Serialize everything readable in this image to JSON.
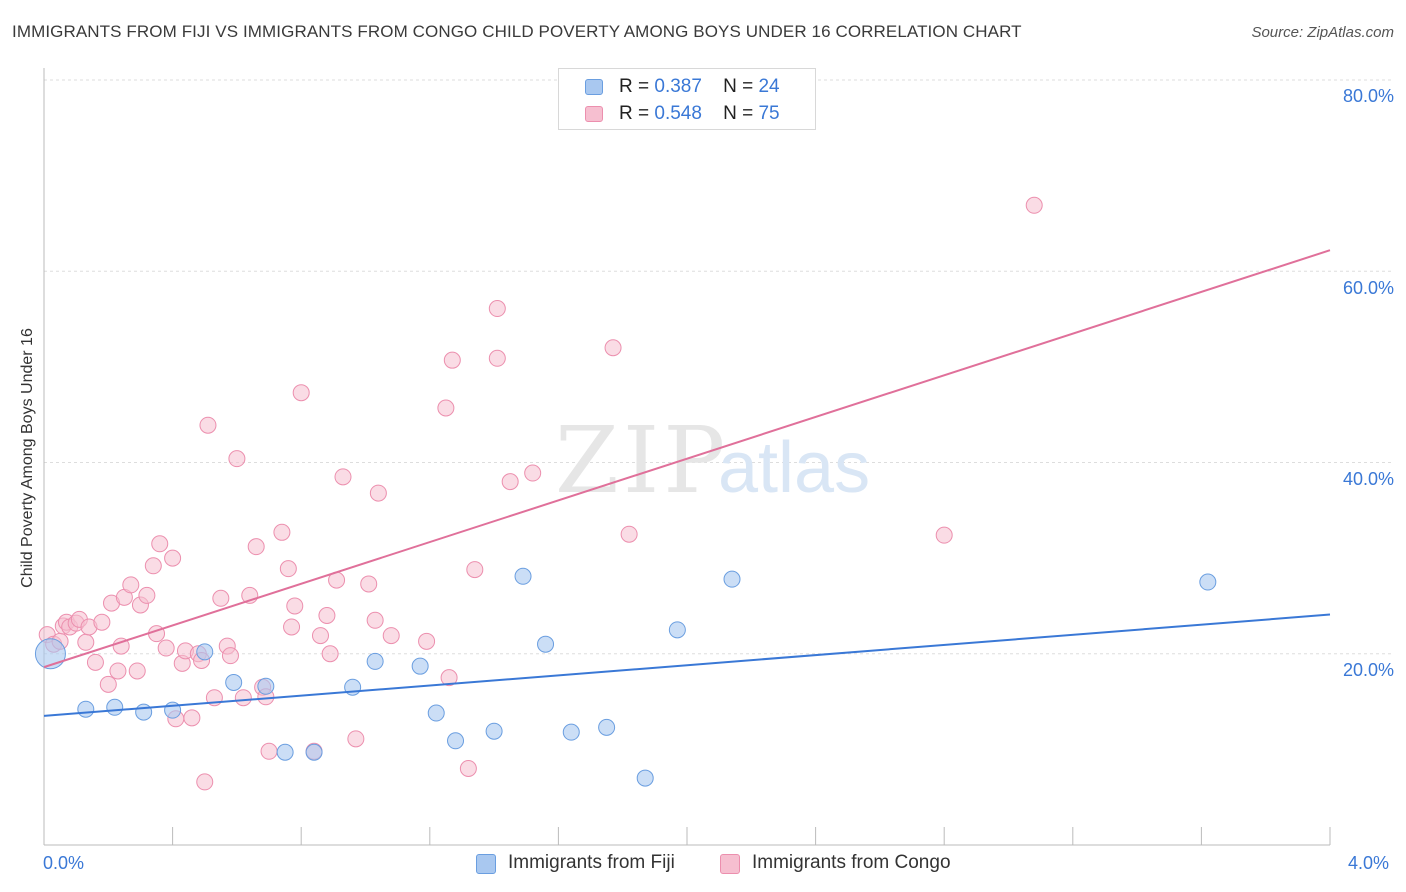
{
  "header": {
    "title": "IMMIGRANTS FROM FIJI VS IMMIGRANTS FROM CONGO CHILD POVERTY AMONG BOYS UNDER 16 CORRELATION CHART",
    "source": "Source: ZipAtlas.com"
  },
  "watermark": {
    "zip": "ZIP",
    "atlas": "atlas"
  },
  "legend_stats": {
    "r_label": "R =",
    "n_label": "N =",
    "fiji": {
      "r": "0.387",
      "n": "24"
    },
    "congo": {
      "r": "0.548",
      "n": "75"
    }
  },
  "colors": {
    "fiji_fill": "#a9c8f0",
    "fiji_stroke": "#6a9ee0",
    "fiji_line": "#3a78d6",
    "congo_fill": "#f6bfd0",
    "congo_stroke": "#ec8fae",
    "congo_line": "#e0709a",
    "axis_text": "#3a78d6",
    "grid": "#dddddd"
  },
  "chart_data": {
    "type": "scatter",
    "title": "IMMIGRANTS FROM FIJI VS IMMIGRANTS FROM CONGO CHILD POVERTY AMONG BOYS UNDER 16 CORRELATION CHART",
    "xlabel": "",
    "ylabel": "Child Poverty Among Boys Under 16",
    "xlim": [
      0,
      4.0
    ],
    "ylim": [
      0,
      80
    ],
    "x_tick_labels": [
      "0.0%",
      "4.0%"
    ],
    "y_ticks": [
      20,
      40,
      60,
      80
    ],
    "y_tick_labels": [
      "20.0%",
      "40.0%",
      "60.0%",
      "80.0%"
    ],
    "grid": true,
    "legend_position": "bottom",
    "series": [
      {
        "name": "Immigrants from Fiji",
        "trend": {
          "x": [
            0,
            4.0
          ],
          "y": [
            13.5,
            24.1
          ]
        },
        "points": [
          {
            "x": 0.02,
            "y": 20.0,
            "big": true
          },
          {
            "x": 0.13,
            "y": 14.2
          },
          {
            "x": 0.22,
            "y": 14.4
          },
          {
            "x": 0.31,
            "y": 13.9
          },
          {
            "x": 0.4,
            "y": 14.1
          },
          {
            "x": 0.5,
            "y": 20.2
          },
          {
            "x": 0.59,
            "y": 17.0
          },
          {
            "x": 0.69,
            "y": 16.6
          },
          {
            "x": 0.75,
            "y": 9.7
          },
          {
            "x": 0.84,
            "y": 9.7
          },
          {
            "x": 0.96,
            "y": 16.5
          },
          {
            "x": 1.03,
            "y": 19.2
          },
          {
            "x": 1.17,
            "y": 18.7
          },
          {
            "x": 1.22,
            "y": 13.8
          },
          {
            "x": 1.28,
            "y": 10.9
          },
          {
            "x": 1.4,
            "y": 11.9
          },
          {
            "x": 1.49,
            "y": 28.1
          },
          {
            "x": 1.56,
            "y": 21.0
          },
          {
            "x": 1.64,
            "y": 11.8
          },
          {
            "x": 1.75,
            "y": 12.3
          },
          {
            "x": 1.87,
            "y": 7.0
          },
          {
            "x": 1.97,
            "y": 22.5
          },
          {
            "x": 2.14,
            "y": 27.8
          },
          {
            "x": 3.62,
            "y": 27.5
          }
        ]
      },
      {
        "name": "Immigrants from Congo",
        "trend": {
          "x": [
            0,
            4.0
          ],
          "y": [
            18.6,
            62.2
          ]
        },
        "points": [
          {
            "x": 0.01,
            "y": 22.0
          },
          {
            "x": 0.03,
            "y": 21.0
          },
          {
            "x": 0.05,
            "y": 21.3
          },
          {
            "x": 0.06,
            "y": 22.9
          },
          {
            "x": 0.07,
            "y": 23.3
          },
          {
            "x": 0.08,
            "y": 22.8
          },
          {
            "x": 0.1,
            "y": 23.2
          },
          {
            "x": 0.11,
            "y": 23.6
          },
          {
            "x": 0.13,
            "y": 21.2
          },
          {
            "x": 0.14,
            "y": 22.8
          },
          {
            "x": 0.16,
            "y": 19.1
          },
          {
            "x": 0.18,
            "y": 23.3
          },
          {
            "x": 0.2,
            "y": 16.8
          },
          {
            "x": 0.21,
            "y": 25.3
          },
          {
            "x": 0.23,
            "y": 18.2
          },
          {
            "x": 0.24,
            "y": 20.8
          },
          {
            "x": 0.25,
            "y": 25.9
          },
          {
            "x": 0.27,
            "y": 27.2
          },
          {
            "x": 0.29,
            "y": 18.2
          },
          {
            "x": 0.3,
            "y": 25.1
          },
          {
            "x": 0.32,
            "y": 26.1
          },
          {
            "x": 0.34,
            "y": 29.2
          },
          {
            "x": 0.35,
            "y": 22.1
          },
          {
            "x": 0.36,
            "y": 31.5
          },
          {
            "x": 0.38,
            "y": 20.6
          },
          {
            "x": 0.4,
            "y": 30.0
          },
          {
            "x": 0.41,
            "y": 13.2
          },
          {
            "x": 0.43,
            "y": 19.0
          },
          {
            "x": 0.44,
            "y": 20.3
          },
          {
            "x": 0.46,
            "y": 13.3
          },
          {
            "x": 0.48,
            "y": 20.0
          },
          {
            "x": 0.49,
            "y": 19.3
          },
          {
            "x": 0.5,
            "y": 6.6
          },
          {
            "x": 0.51,
            "y": 43.9
          },
          {
            "x": 0.53,
            "y": 15.4
          },
          {
            "x": 0.55,
            "y": 25.8
          },
          {
            "x": 0.57,
            "y": 20.8
          },
          {
            "x": 0.58,
            "y": 19.8
          },
          {
            "x": 0.6,
            "y": 40.4
          },
          {
            "x": 0.62,
            "y": 15.4
          },
          {
            "x": 0.64,
            "y": 26.1
          },
          {
            "x": 0.66,
            "y": 31.2
          },
          {
            "x": 0.68,
            "y": 16.5
          },
          {
            "x": 0.69,
            "y": 15.5
          },
          {
            "x": 0.7,
            "y": 9.8
          },
          {
            "x": 0.74,
            "y": 32.7
          },
          {
            "x": 0.76,
            "y": 28.9
          },
          {
            "x": 0.77,
            "y": 22.8
          },
          {
            "x": 0.78,
            "y": 25.0
          },
          {
            "x": 0.8,
            "y": 47.3
          },
          {
            "x": 0.84,
            "y": 9.8
          },
          {
            "x": 0.86,
            "y": 21.9
          },
          {
            "x": 0.88,
            "y": 24.0
          },
          {
            "x": 0.89,
            "y": 20.0
          },
          {
            "x": 0.91,
            "y": 27.7
          },
          {
            "x": 0.93,
            "y": 38.5
          },
          {
            "x": 0.97,
            "y": 11.1
          },
          {
            "x": 1.01,
            "y": 27.3
          },
          {
            "x": 1.03,
            "y": 23.5
          },
          {
            "x": 1.04,
            "y": 36.8
          },
          {
            "x": 1.08,
            "y": 21.9
          },
          {
            "x": 1.19,
            "y": 21.3
          },
          {
            "x": 1.25,
            "y": 45.7
          },
          {
            "x": 1.27,
            "y": 50.7
          },
          {
            "x": 1.32,
            "y": 8.0
          },
          {
            "x": 1.34,
            "y": 28.8
          },
          {
            "x": 1.41,
            "y": 50.9
          },
          {
            "x": 1.45,
            "y": 38.0
          },
          {
            "x": 1.52,
            "y": 38.9
          },
          {
            "x": 1.41,
            "y": 56.1
          },
          {
            "x": 1.77,
            "y": 52.0
          },
          {
            "x": 1.82,
            "y": 32.5
          },
          {
            "x": 2.8,
            "y": 32.4
          },
          {
            "x": 3.08,
            "y": 66.9
          },
          {
            "x": 1.26,
            "y": 17.5
          }
        ]
      }
    ]
  },
  "legend_bottom": {
    "fiji_label": "Immigrants from Fiji",
    "congo_label": "Immigrants from Congo"
  }
}
